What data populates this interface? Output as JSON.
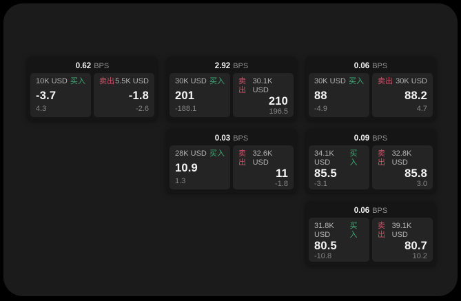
{
  "labels": {
    "bps": "BPS",
    "buy": "买入",
    "sell": "卖出"
  },
  "colors": {
    "page_bg": "#000000",
    "panel_bg": "#1b1b1b",
    "card_bg": "#151515",
    "subcard_bg": "#242424",
    "buy_green": "#3fab77",
    "sell_red": "#d25068",
    "value_white": "#f5f5f5",
    "label_gray": "#b3b3b3",
    "muted_gray": "#868686"
  },
  "cards": [
    {
      "row": 1,
      "col": 1,
      "bps": "0.62",
      "buy": {
        "size": "10K USD",
        "value": "-3.7",
        "delta": "4.3"
      },
      "sell": {
        "size": "5.5K USD",
        "value": "-1.8",
        "delta": "-2.6"
      }
    },
    {
      "row": 1,
      "col": 2,
      "bps": "2.92",
      "buy": {
        "size": "30K USD",
        "value": "201",
        "delta": "-188.1"
      },
      "sell": {
        "size": "30.1K USD",
        "value": "210",
        "delta": "196.5"
      }
    },
    {
      "row": 1,
      "col": 3,
      "bps": "0.06",
      "buy": {
        "size": "30K USD",
        "value": "88",
        "delta": "-4.9"
      },
      "sell": {
        "size": "30K USD",
        "value": "88.2",
        "delta": "4.7"
      }
    },
    {
      "row": 2,
      "col": 2,
      "bps": "0.03",
      "buy": {
        "size": "28K USD",
        "value": "10.9",
        "delta": "1.3"
      },
      "sell": {
        "size": "32.6K USD",
        "value": "11",
        "delta": "-1.8"
      }
    },
    {
      "row": 2,
      "col": 3,
      "bps": "0.09",
      "buy": {
        "size": "34.1K USD",
        "value": "85.5",
        "delta": "-3.1"
      },
      "sell": {
        "size": "32.8K USD",
        "value": "85.8",
        "delta": "3.0"
      }
    },
    {
      "row": 3,
      "col": 3,
      "bps": "0.06",
      "buy": {
        "size": "31.8K USD",
        "value": "80.5",
        "delta": "-10.8"
      },
      "sell": {
        "size": "39.1K USD",
        "value": "80.7",
        "delta": "10.2"
      }
    }
  ]
}
